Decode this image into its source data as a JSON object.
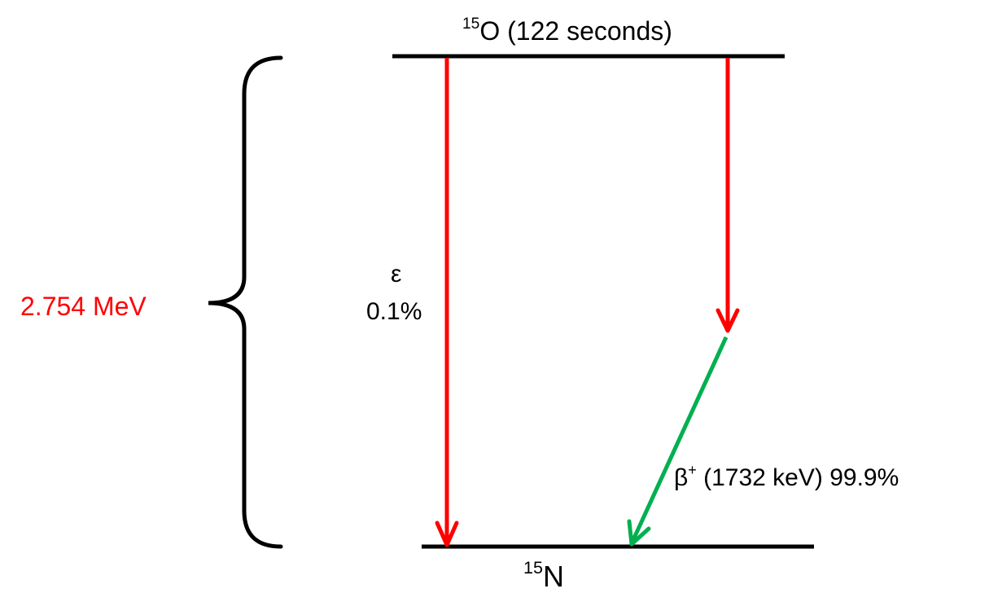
{
  "parent": {
    "mass_number": "15",
    "symbol": "O",
    "halflife": " (122 seconds)"
  },
  "daughter": {
    "mass_number": "15",
    "symbol": "N"
  },
  "energy": {
    "label": "2.754 MeV"
  },
  "electron_capture": {
    "symbol": "ε",
    "branch": "0.1%"
  },
  "beta_plus": {
    "symbol": "β",
    "charge": "+",
    "detail": " (1732 keV) 99.9%"
  },
  "colors": {
    "level_line": "#000000",
    "brace": "#000000",
    "energy_text": "#ff0000",
    "ec_arrow": "#ff0000",
    "beta_arrow_upper": "#ff0000",
    "beta_arrow_lower": "#00b050",
    "label_text": "#000000"
  }
}
